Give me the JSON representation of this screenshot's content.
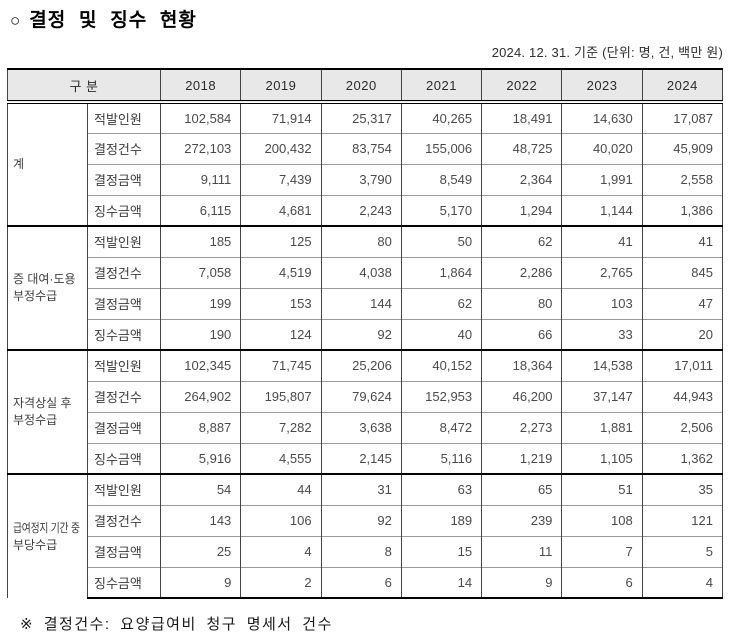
{
  "title": {
    "bullet": "○",
    "text": "결정 및 징수 현황"
  },
  "caption": "2024. 12. 31. 기준 (단위: 명, 건, 백만 원)",
  "colors": {
    "header_bg": "#e8e8e8",
    "border_strong": "#000000",
    "border_light": "#9a9a9a",
    "number_text": "#4a4a4a"
  },
  "table": {
    "header": {
      "gubun_label": "구 분",
      "years": [
        "2018",
        "2019",
        "2020",
        "2021",
        "2022",
        "2023",
        "2024"
      ]
    },
    "sections": [
      {
        "category_lines": [
          "계"
        ],
        "rows": [
          {
            "label": "적발인원",
            "values": [
              "102,584",
              "71,914",
              "25,317",
              "40,265",
              "18,491",
              "14,630",
              "17,087"
            ]
          },
          {
            "label": "결정건수",
            "values": [
              "272,103",
              "200,432",
              "83,754",
              "155,006",
              "48,725",
              "40,020",
              "45,909"
            ]
          },
          {
            "label": "결정금액",
            "values": [
              "9,111",
              "7,439",
              "3,790",
              "8,549",
              "2,364",
              "1,991",
              "2,558"
            ]
          },
          {
            "label": "징수금액",
            "values": [
              "6,115",
              "4,681",
              "2,243",
              "5,170",
              "1,294",
              "1,144",
              "1,386"
            ]
          }
        ]
      },
      {
        "category_lines": [
          "증 대여·도용",
          "부정수급"
        ],
        "rows": [
          {
            "label": "적발인원",
            "values": [
              "185",
              "125",
              "80",
              "50",
              "62",
              "41",
              "41"
            ]
          },
          {
            "label": "결정건수",
            "values": [
              "7,058",
              "4,519",
              "4,038",
              "1,864",
              "2,286",
              "2,765",
              "845"
            ]
          },
          {
            "label": "결정금액",
            "values": [
              "199",
              "153",
              "144",
              "62",
              "80",
              "103",
              "47"
            ]
          },
          {
            "label": "징수금액",
            "values": [
              "190",
              "124",
              "92",
              "40",
              "66",
              "33",
              "20"
            ]
          }
        ]
      },
      {
        "category_lines": [
          "자격상실 후",
          "부정수급"
        ],
        "rows": [
          {
            "label": "적발인원",
            "values": [
              "102,345",
              "71,745",
              "25,206",
              "40,152",
              "18,364",
              "14,538",
              "17,011"
            ]
          },
          {
            "label": "결정건수",
            "values": [
              "264,902",
              "195,807",
              "79,624",
              "152,953",
              "46,200",
              "37,147",
              "44,943"
            ]
          },
          {
            "label": "결정금액",
            "values": [
              "8,887",
              "7,282",
              "3,638",
              "8,472",
              "2,273",
              "1,881",
              "2,506"
            ]
          },
          {
            "label": "징수금액",
            "values": [
              "5,916",
              "4,555",
              "2,145",
              "5,116",
              "1,219",
              "1,105",
              "1,362"
            ]
          }
        ]
      },
      {
        "category_lines": [
          "급여정지 기간 중",
          "부당수급"
        ],
        "rows": [
          {
            "label": "적발인원",
            "values": [
              "54",
              "44",
              "31",
              "63",
              "65",
              "51",
              "35"
            ]
          },
          {
            "label": "결정건수",
            "values": [
              "143",
              "106",
              "92",
              "189",
              "239",
              "108",
              "121"
            ]
          },
          {
            "label": "결정금액",
            "values": [
              "25",
              "4",
              "8",
              "15",
              "11",
              "7",
              "5"
            ]
          },
          {
            "label": "징수금액",
            "values": [
              "9",
              "2",
              "6",
              "14",
              "9",
              "6",
              "4"
            ]
          }
        ]
      }
    ]
  },
  "footnote": "※ 결정건수: 요양급여비 청구 명세서 건수"
}
